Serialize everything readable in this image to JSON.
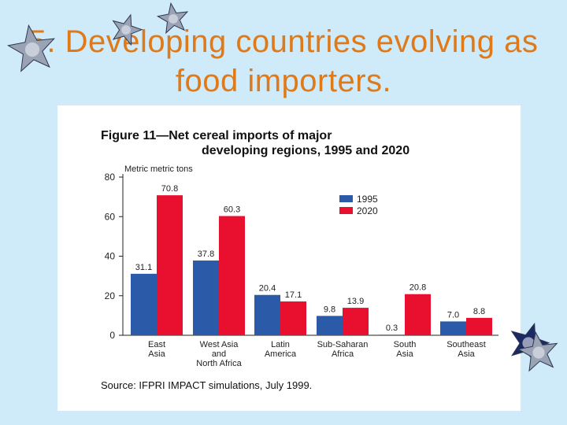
{
  "slide": {
    "title_line1": "5. Developing countries evolving as",
    "title_line2": "food importers."
  },
  "colors": {
    "background": "#cfeaf9",
    "title": "#e07a18",
    "series_1995": "#2a5aa8",
    "series_2020": "#e8102e"
  },
  "decorations": [
    "star-icon",
    "star-icon",
    "star-icon",
    "star-icon",
    "star-icon"
  ],
  "chart_data": {
    "type": "bar",
    "title_line1": "Figure 11—Net cereal imports of major",
    "title_line2": "developing regions, 1995 and 2020",
    "ylabel": "Metric  metric tons",
    "source": "Source: IFPRI IMPACT simulations, July 1999.",
    "ylim": [
      0,
      80
    ],
    "yticks": [
      "0",
      "20",
      "40",
      "60",
      "80"
    ],
    "legend_position": "top-right",
    "categories": [
      [
        "East",
        "Asia"
      ],
      [
        "West Asia",
        "and",
        "North Africa"
      ],
      [
        "Latin",
        "America"
      ],
      [
        "Sub-Saharan",
        "Africa"
      ],
      [
        "South",
        "Asia"
      ],
      [
        "Southeast",
        "Asia"
      ]
    ],
    "series": [
      {
        "name": "1995",
        "values": [
          31.1,
          37.8,
          20.4,
          9.8,
          0.3,
          7.0
        ],
        "labels": [
          "31.1",
          "37.8",
          "20.4",
          "9.8",
          "0.3",
          "7.0"
        ]
      },
      {
        "name": "2020",
        "values": [
          70.8,
          60.3,
          17.1,
          13.9,
          20.8,
          8.8
        ],
        "labels": [
          "70.8",
          "60.3",
          "17.1",
          "13.9",
          "20.8",
          "8.8"
        ]
      }
    ]
  }
}
